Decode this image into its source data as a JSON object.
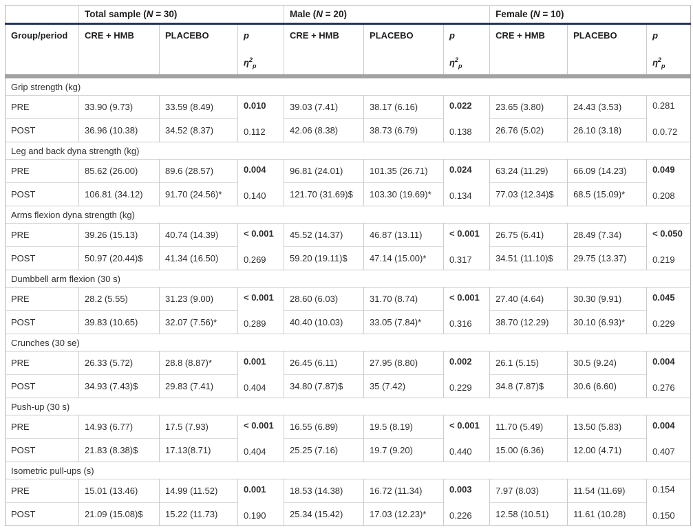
{
  "colors": {
    "header_rule_navy": "#21365a",
    "header_divider_gray": "#a2a2a2",
    "cell_border": "#cccccc"
  },
  "table": {
    "group_headers": [
      {
        "pre": "Total sample (",
        "n": "N",
        "rest": " = 30)"
      },
      {
        "pre": "Male (",
        "n": "N",
        "rest": " = 20)"
      },
      {
        "pre": "Female (",
        "n": "N",
        "rest": " = 10)"
      }
    ],
    "col_headers": {
      "group_period": "Group/period",
      "cre": "CRE + HMB",
      "placebo": "PLACEBO",
      "p": "p",
      "eta_sym": "η",
      "eta_sup": "2",
      "eta_sub": "p"
    },
    "sections": [
      {
        "title": "Grip strength (kg)",
        "rows": [
          {
            "period": "PRE",
            "cells": [
              "33.90 (9.73)",
              "33.59 (8.49)",
              "39.03 (7.41)",
              "38.17 (6.16)",
              "23.65 (3.80)",
              "24.43 (3.53)"
            ]
          },
          {
            "period": "POST",
            "cells": [
              "36.96 (10.38)",
              "34.52 (8.37)",
              "42.06 (8.38)",
              "38.73 (6.79)",
              "26.76 (5.02)",
              "26.10 (3.18)"
            ]
          }
        ],
        "p_values": [
          {
            "p": "0.010",
            "bold": true,
            "eta": "0.112"
          },
          {
            "p": "0.022",
            "bold": true,
            "eta": "0.138"
          },
          {
            "p": "0.281",
            "bold": false,
            "eta": "0.0.72"
          }
        ]
      },
      {
        "title": "Leg and back dyna strength (kg)",
        "rows": [
          {
            "period": "PRE",
            "cells": [
              "85.62 (26.00)",
              "89.6 (28.57)",
              "96.81 (24.01)",
              "101.35 (26.71)",
              "63.24 (11.29)",
              "66.09 (14.23)"
            ]
          },
          {
            "period": "POST",
            "cells": [
              "106.81 (34.12)",
              "91.70 (24.56)*",
              "121.70 (31.69)$",
              "103.30 (19.69)*",
              "77.03 (12.34)$",
              "68.5 (15.09)*"
            ]
          }
        ],
        "p_values": [
          {
            "p": "0.004",
            "bold": true,
            "eta": "0.140"
          },
          {
            "p": "0.024",
            "bold": true,
            "eta": "0.134"
          },
          {
            "p": "0.049",
            "bold": true,
            "eta": "0.208"
          }
        ]
      },
      {
        "title": "Arms flexion dyna strength (kg)",
        "rows": [
          {
            "period": "PRE",
            "cells": [
              "39.26 (15.13)",
              "40.74 (14.39)",
              "45.52 (14.37)",
              "46.87 (13.11)",
              "26.75 (6.41)",
              "28.49 (7.34)"
            ]
          },
          {
            "period": "POST",
            "cells": [
              "50.97 (20.44)$",
              "41.34 (16.50)",
              "59.20 (19.11)$",
              "47.14 (15.00)*",
              "34.51 (11.10)$",
              "29.75 (13.37)"
            ]
          }
        ],
        "p_values": [
          {
            "p": "< 0.001",
            "bold": true,
            "eta": "0.269"
          },
          {
            "p": "< 0.001",
            "bold": true,
            "eta": "0.317"
          },
          {
            "p": "< 0.050",
            "bold": true,
            "eta": "0.219"
          }
        ]
      },
      {
        "title": "Dumbbell arm flexion (30 s)",
        "rows": [
          {
            "period": "PRE",
            "cells": [
              "28.2 (5.55)",
              "31.23 (9.00)",
              "28.60 (6.03)",
              "31.70 (8.74)",
              "27.40 (4.64)",
              "30.30 (9.91)"
            ]
          },
          {
            "period": "POST",
            "cells": [
              "39.83 (10.65)",
              "32.07 (7.56)*",
              "40.40 (10.03)",
              "33.05 (7.84)*",
              "38.70 (12.29)",
              "30.10 (6.93)*"
            ]
          }
        ],
        "p_values": [
          {
            "p": "< 0.001",
            "bold": true,
            "eta": "0.289"
          },
          {
            "p": "< 0.001",
            "bold": true,
            "eta": "0.316"
          },
          {
            "p": "0.045",
            "bold": true,
            "eta": "0.229"
          }
        ]
      },
      {
        "title": "Crunches (30 se)",
        "rows": [
          {
            "period": "PRE",
            "cells": [
              "26.33 (5.72)",
              "28.8 (8.87)*",
              "26.45 (6.11)",
              "27.95 (8.80)",
              "26.1 (5.15)",
              "30.5 (9.24)"
            ]
          },
          {
            "period": "POST",
            "cells": [
              "34.93 (7.43)$",
              "29.83 (7.41)",
              "34.80 (7.87)$",
              "35 (7.42)",
              "34.8 (7.87)$",
              "30.6 (6.60)"
            ]
          }
        ],
        "p_values": [
          {
            "p": "0.001",
            "bold": true,
            "eta": "0.404"
          },
          {
            "p": "0.002",
            "bold": true,
            "eta": "0.229"
          },
          {
            "p": "0.004",
            "bold": true,
            "eta": "0.276"
          }
        ]
      },
      {
        "title": "Push-up (30 s)",
        "rows": [
          {
            "period": "PRE",
            "cells": [
              "14.93 (6.77)",
              "17.5 (7.93)",
              "16.55 (6.89)",
              "19.5 (8.19)",
              "11.70 (5.49)",
              "13.50 (5.83)"
            ]
          },
          {
            "period": "POST",
            "cells": [
              "21.83 (8.38)$",
              "17.13(8.71)",
              "25.25 (7.16)",
              "19.7 (9.20)",
              "15.00 (6.36)",
              "12.00 (4.71)"
            ]
          }
        ],
        "p_values": [
          {
            "p": "< 0.001",
            "bold": true,
            "eta": "0.404"
          },
          {
            "p": "< 0.001",
            "bold": true,
            "eta": "0.440"
          },
          {
            "p": "0.004",
            "bold": true,
            "eta": "0.407"
          }
        ]
      },
      {
        "title": "Isometric pull-ups (s)",
        "rows": [
          {
            "period": "PRE",
            "cells": [
              "15.01 (13.46)",
              "14.99 (11.52)",
              "18.53 (14.38)",
              "16.72 (11.34)",
              "7.97 (8.03)",
              "11.54 (11.69)"
            ]
          },
          {
            "period": "POST",
            "cells": [
              "21.09 (15.08)$",
              "15.22 (11.73)",
              "25.34 (15.42)",
              "17.03 (12.23)*",
              "12.58 (10.51)",
              "11.61 (10.28)"
            ]
          }
        ],
        "p_values": [
          {
            "p": "0.001",
            "bold": true,
            "eta": "0.190"
          },
          {
            "p": "0.003",
            "bold": true,
            "eta": "0.226"
          },
          {
            "p": "0.154",
            "bold": false,
            "eta": "0.150"
          }
        ]
      }
    ]
  }
}
